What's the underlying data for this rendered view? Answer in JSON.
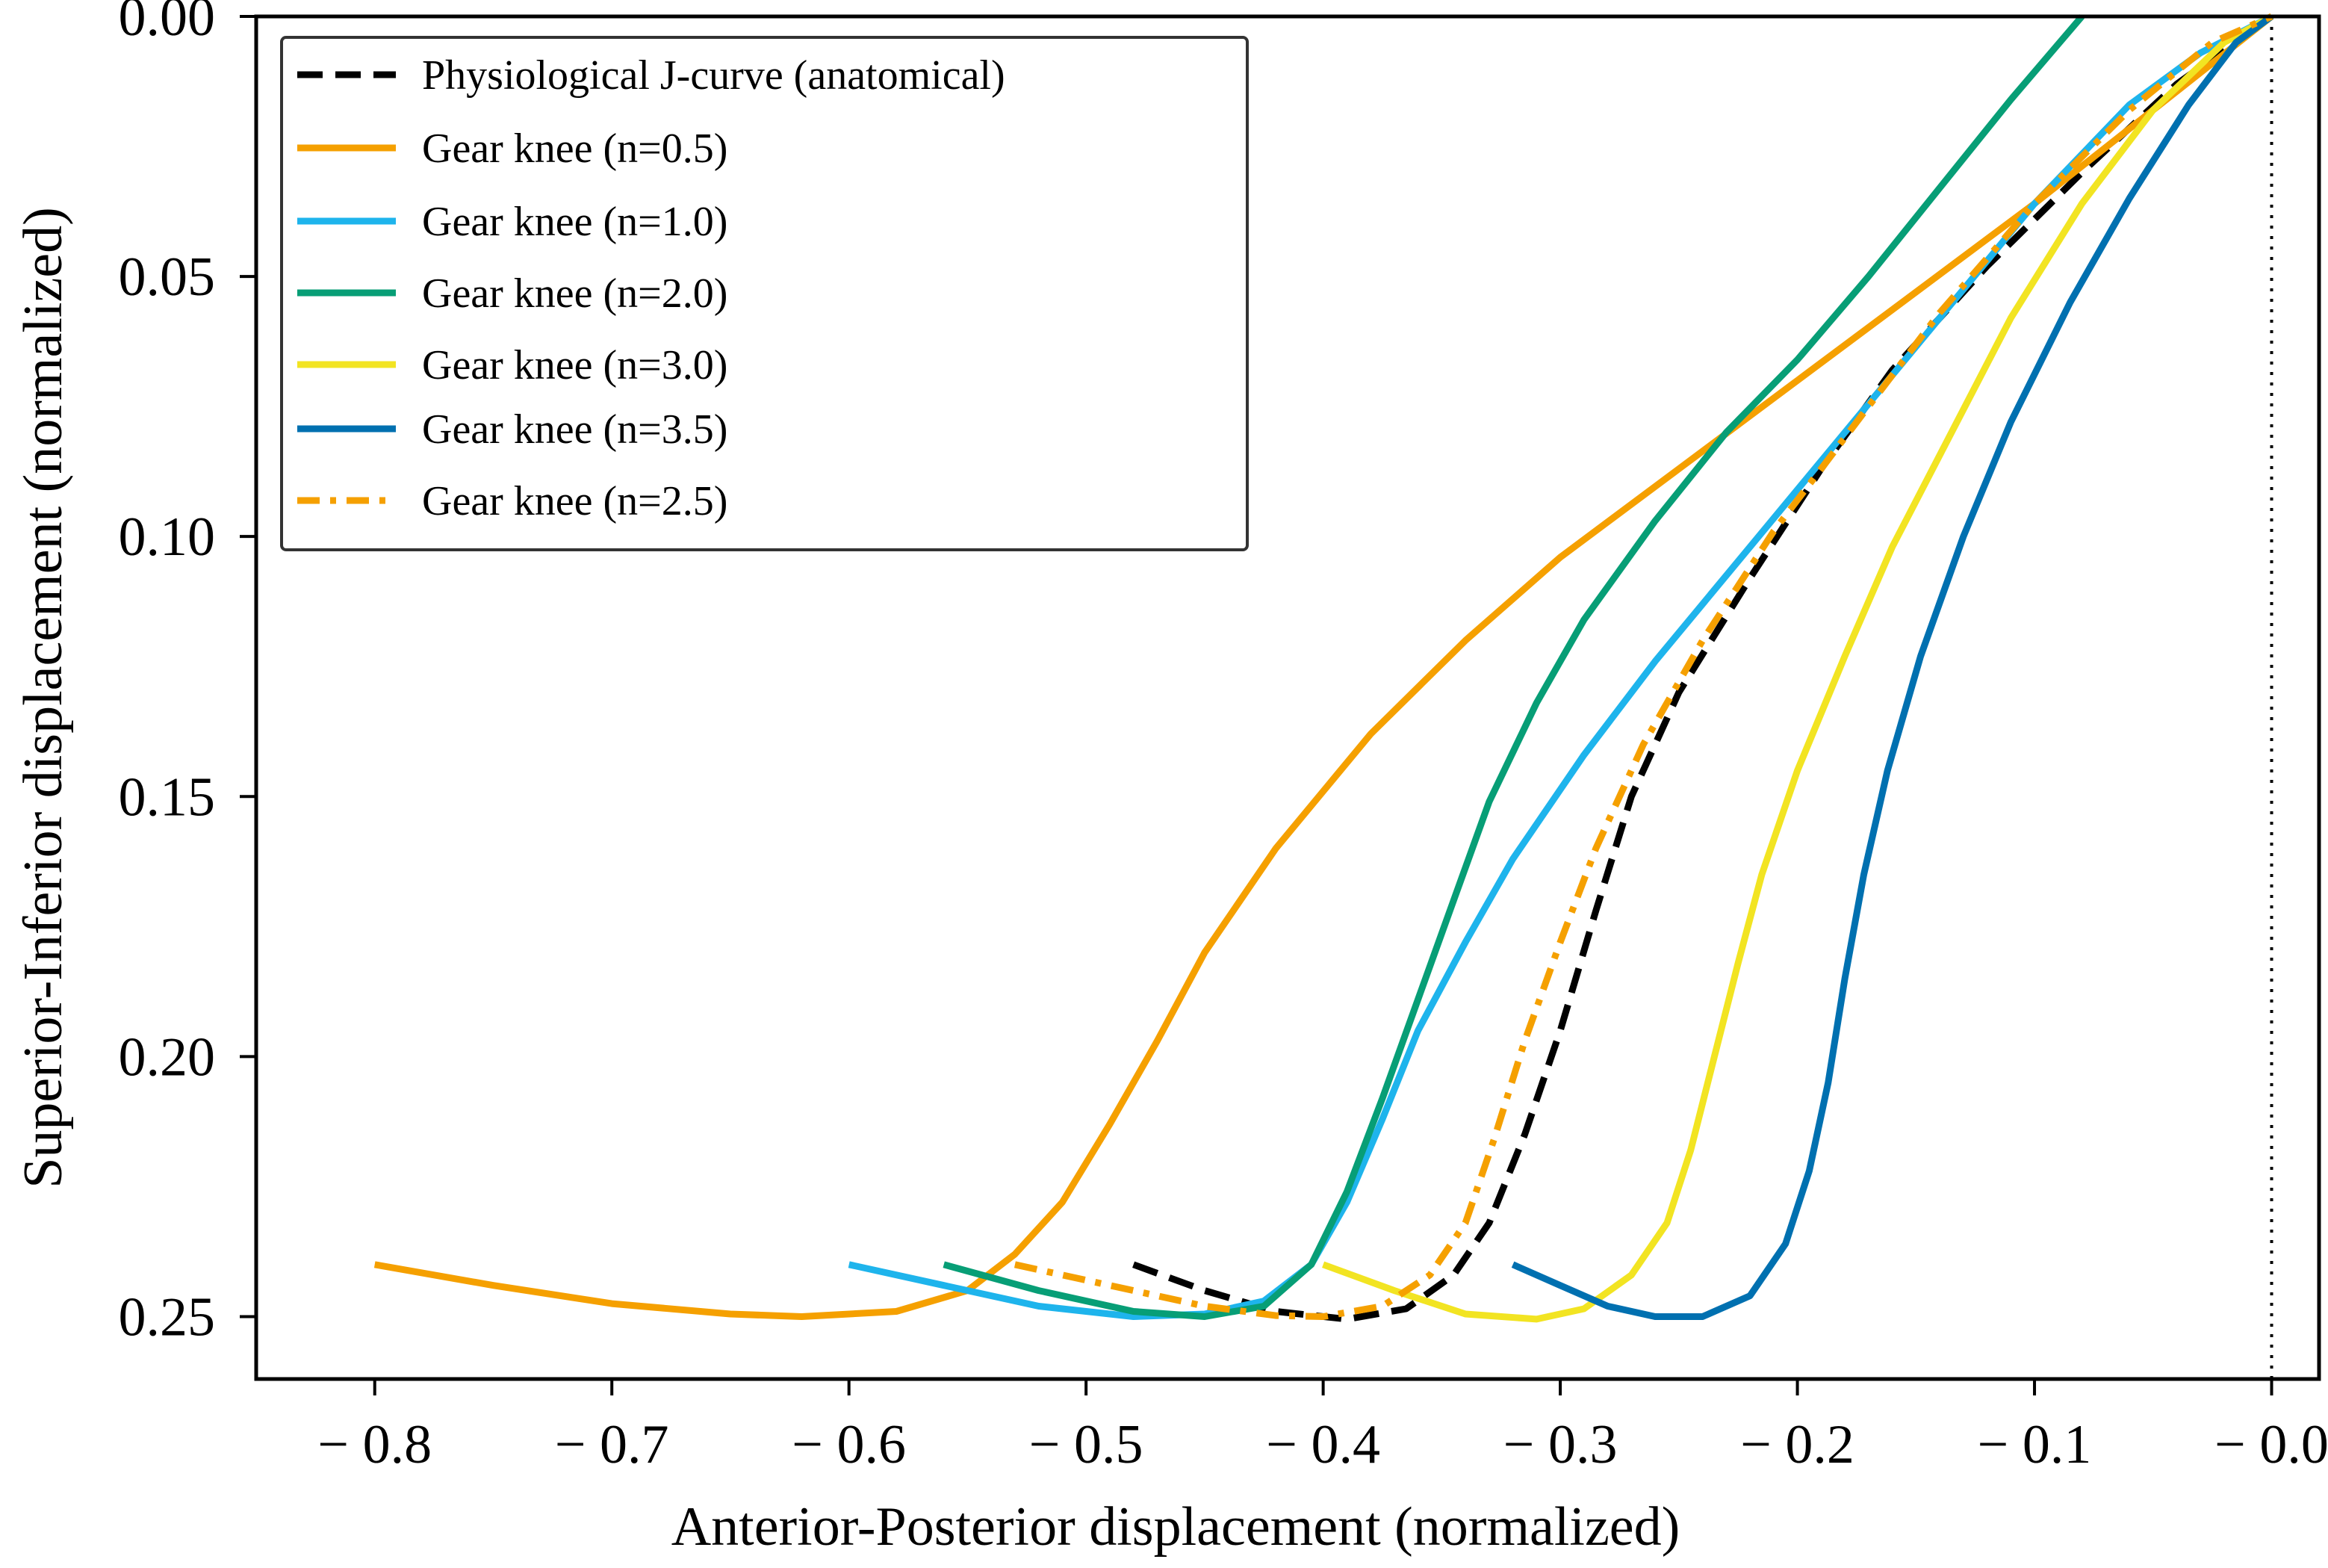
{
  "chart_data": {
    "type": "line",
    "title": "",
    "xlabel": "Anterior-Posterior displacement (normalized)",
    "ylabel": "Superior-Inferior displacement (normalized)",
    "xlim": [
      -0.85,
      0.02
    ],
    "ylim": [
      0.0,
      0.262
    ],
    "y_inverted": true,
    "grid": false,
    "legend_position": "top-left",
    "x_ticks": [
      -0.8,
      -0.7,
      -0.6,
      -0.5,
      -0.4,
      -0.3,
      -0.2,
      -0.1,
      0.0
    ],
    "x_tick_labels": [
      "− 0.8",
      "− 0.7",
      "− 0.6",
      "− 0.5",
      "− 0.4",
      "− 0.3",
      "− 0.2",
      "− 0.1",
      "− 0.0"
    ],
    "y_ticks": [
      0.0,
      0.05,
      0.1,
      0.15,
      0.2,
      0.25
    ],
    "y_tick_labels": [
      "0.00",
      "0.05",
      "0.10",
      "0.15",
      "0.20",
      "0.25"
    ],
    "reference_lines": {
      "x": 0.0,
      "y": 0.0,
      "style": "dotted"
    },
    "series": [
      {
        "name": "Physiological J-curve (anatomical)",
        "color": "#000000",
        "dash": "dashed",
        "points": [
          [
            -0.48,
            0.24
          ],
          [
            -0.45,
            0.245
          ],
          [
            -0.42,
            0.249
          ],
          [
            -0.39,
            0.2505
          ],
          [
            -0.365,
            0.2485
          ],
          [
            -0.345,
            0.242
          ],
          [
            -0.33,
            0.232
          ],
          [
            -0.315,
            0.215
          ],
          [
            -0.3,
            0.195
          ],
          [
            -0.285,
            0.172
          ],
          [
            -0.27,
            0.15
          ],
          [
            -0.25,
            0.13
          ],
          [
            -0.22,
            0.108
          ],
          [
            -0.19,
            0.087
          ],
          [
            -0.16,
            0.068
          ],
          [
            -0.12,
            0.048
          ],
          [
            -0.08,
            0.03
          ],
          [
            -0.04,
            0.013
          ],
          [
            0.0,
            0.0
          ]
        ]
      },
      {
        "name": "Gear knee (n=0.5)",
        "color": "#F5A000",
        "dash": "solid",
        "points": [
          [
            -0.8,
            0.24
          ],
          [
            -0.75,
            0.244
          ],
          [
            -0.7,
            0.2475
          ],
          [
            -0.65,
            0.2495
          ],
          [
            -0.62,
            0.25
          ],
          [
            -0.58,
            0.249
          ],
          [
            -0.55,
            0.245
          ],
          [
            -0.53,
            0.238
          ],
          [
            -0.51,
            0.228
          ],
          [
            -0.49,
            0.213
          ],
          [
            -0.47,
            0.197
          ],
          [
            -0.45,
            0.18
          ],
          [
            -0.42,
            0.16
          ],
          [
            -0.38,
            0.138
          ],
          [
            -0.34,
            0.12
          ],
          [
            -0.3,
            0.104
          ],
          [
            -0.25,
            0.087
          ],
          [
            -0.2,
            0.07
          ],
          [
            -0.15,
            0.053
          ],
          [
            -0.1,
            0.036
          ],
          [
            -0.05,
            0.018
          ],
          [
            0.0,
            0.0
          ]
        ]
      },
      {
        "name": "Gear knee (n=1.0)",
        "color": "#1EB4EC",
        "dash": "solid",
        "points": [
          [
            -0.6,
            0.24
          ],
          [
            -0.56,
            0.244
          ],
          [
            -0.52,
            0.248
          ],
          [
            -0.48,
            0.25
          ],
          [
            -0.45,
            0.2495
          ],
          [
            -0.425,
            0.247
          ],
          [
            -0.405,
            0.24
          ],
          [
            -0.39,
            0.228
          ],
          [
            -0.375,
            0.212
          ],
          [
            -0.36,
            0.195
          ],
          [
            -0.34,
            0.178
          ],
          [
            -0.32,
            0.162
          ],
          [
            -0.29,
            0.142
          ],
          [
            -0.26,
            0.124
          ],
          [
            -0.22,
            0.102
          ],
          [
            -0.18,
            0.08
          ],
          [
            -0.14,
            0.058
          ],
          [
            -0.1,
            0.036
          ],
          [
            -0.06,
            0.017
          ],
          [
            -0.03,
            0.007
          ],
          [
            0.0,
            0.0
          ]
        ]
      },
      {
        "name": "Gear knee (n=2.0)",
        "color": "#079E76",
        "dash": "solid",
        "points": [
          [
            -0.56,
            0.24
          ],
          [
            -0.52,
            0.245
          ],
          [
            -0.48,
            0.249
          ],
          [
            -0.45,
            0.25
          ],
          [
            -0.425,
            0.248
          ],
          [
            -0.405,
            0.24
          ],
          [
            -0.39,
            0.226
          ],
          [
            -0.375,
            0.208
          ],
          [
            -0.36,
            0.189
          ],
          [
            -0.345,
            0.17
          ],
          [
            -0.33,
            0.151
          ],
          [
            -0.31,
            0.132
          ],
          [
            -0.29,
            0.116
          ],
          [
            -0.26,
            0.097
          ],
          [
            -0.23,
            0.08
          ],
          [
            -0.2,
            0.066
          ],
          [
            -0.17,
            0.05
          ],
          [
            -0.14,
            0.033
          ],
          [
            -0.11,
            0.016
          ],
          [
            -0.08,
            0.0
          ]
        ]
      },
      {
        "name": "Gear knee (n=3.0)",
        "color": "#F2E422",
        "dash": "solid",
        "points": [
          [
            -0.4,
            0.24
          ],
          [
            -0.37,
            0.245
          ],
          [
            -0.34,
            0.2495
          ],
          [
            -0.31,
            0.2505
          ],
          [
            -0.29,
            0.2485
          ],
          [
            -0.27,
            0.242
          ],
          [
            -0.255,
            0.232
          ],
          [
            -0.245,
            0.218
          ],
          [
            -0.235,
            0.2
          ],
          [
            -0.225,
            0.182
          ],
          [
            -0.215,
            0.165
          ],
          [
            -0.2,
            0.145
          ],
          [
            -0.18,
            0.123
          ],
          [
            -0.16,
            0.102
          ],
          [
            -0.135,
            0.08
          ],
          [
            -0.11,
            0.058
          ],
          [
            -0.08,
            0.036
          ],
          [
            -0.05,
            0.018
          ],
          [
            -0.02,
            0.005
          ],
          [
            0.0,
            0.0
          ]
        ]
      },
      {
        "name": "Gear knee (n=3.5)",
        "color": "#0070B0",
        "dash": "solid",
        "points": [
          [
            -0.32,
            0.24
          ],
          [
            -0.3,
            0.244
          ],
          [
            -0.28,
            0.248
          ],
          [
            -0.26,
            0.25
          ],
          [
            -0.24,
            0.25
          ],
          [
            -0.22,
            0.246
          ],
          [
            -0.205,
            0.236
          ],
          [
            -0.195,
            0.222
          ],
          [
            -0.187,
            0.205
          ],
          [
            -0.18,
            0.185
          ],
          [
            -0.172,
            0.165
          ],
          [
            -0.162,
            0.145
          ],
          [
            -0.148,
            0.123
          ],
          [
            -0.13,
            0.1
          ],
          [
            -0.11,
            0.078
          ],
          [
            -0.085,
            0.055
          ],
          [
            -0.06,
            0.035
          ],
          [
            -0.035,
            0.017
          ],
          [
            -0.015,
            0.005
          ],
          [
            0.0,
            0.0
          ]
        ]
      },
      {
        "name": "Gear knee (n=2.5)",
        "color": "#F5A000",
        "dash": "dashdot",
        "points": [
          [
            -0.53,
            0.24
          ],
          [
            -0.49,
            0.244
          ],
          [
            -0.45,
            0.248
          ],
          [
            -0.42,
            0.2498
          ],
          [
            -0.4,
            0.25
          ],
          [
            -0.375,
            0.248
          ],
          [
            -0.355,
            0.242
          ],
          [
            -0.34,
            0.232
          ],
          [
            -0.328,
            0.216
          ],
          [
            -0.315,
            0.197
          ],
          [
            -0.3,
            0.178
          ],
          [
            -0.285,
            0.16
          ],
          [
            -0.265,
            0.14
          ],
          [
            -0.24,
            0.12
          ],
          [
            -0.21,
            0.099
          ],
          [
            -0.175,
            0.078
          ],
          [
            -0.14,
            0.057
          ],
          [
            -0.1,
            0.036
          ],
          [
            -0.06,
            0.018
          ],
          [
            -0.025,
            0.005
          ],
          [
            0.0,
            0.0
          ]
        ]
      }
    ]
  }
}
